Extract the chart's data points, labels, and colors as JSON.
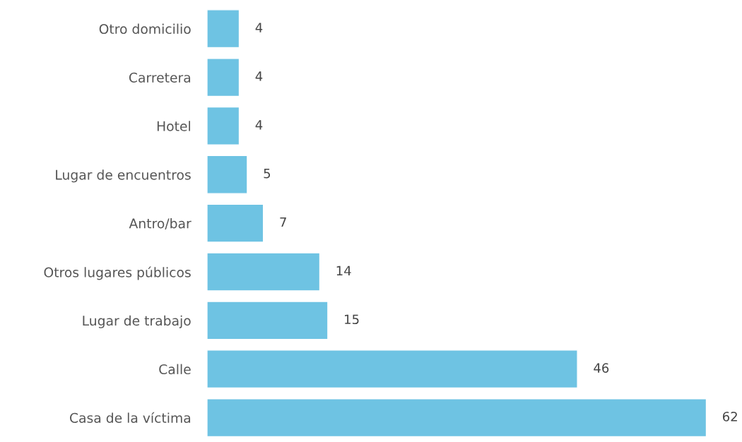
{
  "chart_data": {
    "type": "bar",
    "orientation": "horizontal",
    "categories": [
      "Otro domicilio",
      "Carretera",
      "Hotel",
      "Lugar de encuentros",
      "Antro/bar",
      "Otros lugares públicos",
      "Lugar de trabajo",
      "Calle",
      "Casa de la víctima"
    ],
    "values": [
      4,
      4,
      4,
      5,
      7,
      14,
      15,
      46,
      62
    ],
    "color": "#6ec3e3",
    "data_labels": true
  }
}
